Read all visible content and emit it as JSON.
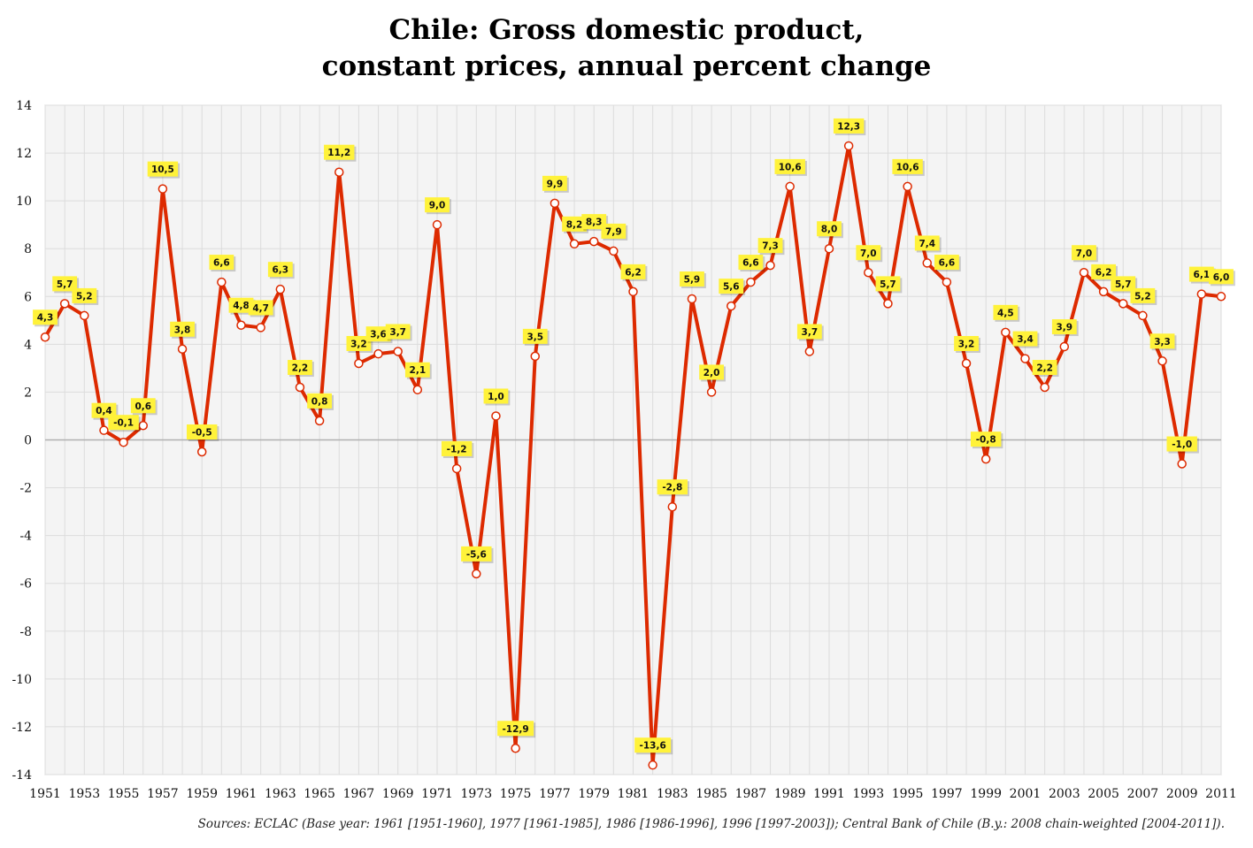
{
  "title_line1": "Chile: Gross domestic product,",
  "title_line2": "constant prices, annual percent change",
  "source": "Sources: ECLAC (Base year: 1961 [1951-1960], 1977 [1961-1985], 1986 [1986-1996], 1996 [1997-2003]); Central Bank of Chile (B.y.: 2008 chain-weighted [2004-2011]).",
  "colors": {
    "line": "#dd2a00",
    "label_bg": "#fff23a",
    "grid": "#dcdcdc",
    "plot_bg": "#f4f4f4"
  },
  "chart_data": {
    "type": "line",
    "title": "Chile: Gross domestic product, constant prices, annual percent change",
    "xlabel": "",
    "ylabel": "",
    "ylim": [
      -14,
      14
    ],
    "xlim": [
      1951,
      2011
    ],
    "grid": true,
    "y_ticks": [
      "14",
      "12",
      "10",
      "8",
      "6",
      "4",
      "2",
      "0",
      "-2",
      "-4",
      "-6",
      "-8",
      "-10",
      "-12",
      "-14"
    ],
    "x_ticks": [
      "1951",
      "1953",
      "1955",
      "1957",
      "1959",
      "1961",
      "1963",
      "1965",
      "1967",
      "1969",
      "1971",
      "1973",
      "1975",
      "1977",
      "1979",
      "1981",
      "1983",
      "1985",
      "1987",
      "1989",
      "1991",
      "1993",
      "1995",
      "1997",
      "1999",
      "2001",
      "2003",
      "2005",
      "2007",
      "2009",
      "2011"
    ],
    "x": [
      1951,
      1952,
      1953,
      1954,
      1955,
      1956,
      1957,
      1958,
      1959,
      1960,
      1961,
      1962,
      1963,
      1964,
      1965,
      1966,
      1967,
      1968,
      1969,
      1970,
      1971,
      1972,
      1973,
      1974,
      1975,
      1976,
      1977,
      1978,
      1979,
      1980,
      1981,
      1982,
      1983,
      1984,
      1985,
      1986,
      1987,
      1988,
      1989,
      1990,
      1991,
      1992,
      1993,
      1994,
      1995,
      1996,
      1997,
      1998,
      1999,
      2000,
      2001,
      2002,
      2003,
      2004,
      2005,
      2006,
      2007,
      2008,
      2009,
      2010,
      2011
    ],
    "values": [
      4.3,
      5.7,
      5.2,
      0.4,
      -0.1,
      0.6,
      10.5,
      3.8,
      -0.5,
      6.6,
      4.8,
      4.7,
      6.3,
      2.2,
      0.8,
      11.2,
      3.2,
      3.6,
      3.7,
      2.1,
      9.0,
      -1.2,
      -5.6,
      1.0,
      -12.9,
      3.5,
      9.9,
      8.2,
      8.3,
      7.9,
      6.2,
      -13.6,
      -2.8,
      5.9,
      2.0,
      5.6,
      6.6,
      7.3,
      10.6,
      3.7,
      8.0,
      12.3,
      7.0,
      5.7,
      10.6,
      7.4,
      6.6,
      3.2,
      -0.8,
      4.5,
      3.4,
      2.2,
      3.9,
      7.0,
      6.2,
      5.7,
      5.2,
      3.3,
      -1.0,
      6.1,
      6.0
    ],
    "labels": [
      "4,3",
      "5,7",
      "5,2",
      "0,4",
      "-0,1",
      "0,6",
      "10,5",
      "3,8",
      "-0,5",
      "6,6",
      "4,8",
      "4,7",
      "6,3",
      "2,2",
      "0,8",
      "11,2",
      "3,2",
      "3,6",
      "3,7",
      "2,1",
      "9,0",
      "-1,2",
      "-5,6",
      "1,0",
      "-12,9",
      "3,5",
      "9,9",
      "8,2",
      "8,3",
      "7,9",
      "6,2",
      "-13,6",
      "-2,8",
      "5,9",
      "2,0",
      "5,6",
      "6,6",
      "7,3",
      "10,6",
      "3,7",
      "8,0",
      "12,3",
      "7,0",
      "5,7",
      "10,6",
      "7,4",
      "6,6",
      "3,2",
      "-0,8",
      "4,5",
      "3,4",
      "2,2",
      "3,9",
      "7,0",
      "6,2",
      "5,7",
      "5,2",
      "3,3",
      "-1,0",
      "6,1",
      "6,0"
    ]
  }
}
